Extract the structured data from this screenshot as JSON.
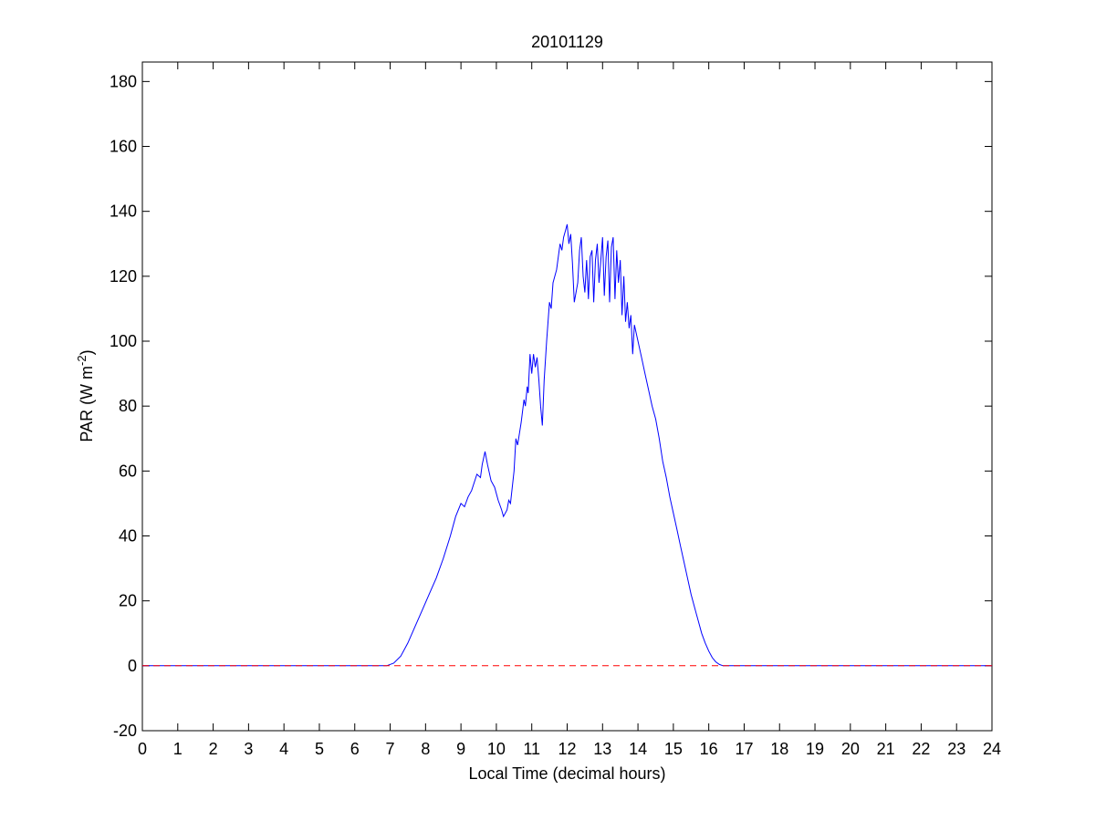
{
  "chart_data": {
    "type": "line",
    "title": "20101129",
    "xlabel": "Local Time (decimal hours)",
    "ylabel": "PAR (W m",
    "ylabel_superscript": "-2",
    "ylabel_suffix": ")",
    "xlim": [
      0,
      24
    ],
    "ylim": [
      -20,
      186
    ],
    "xticks": [
      0,
      1,
      2,
      3,
      4,
      5,
      6,
      7,
      8,
      9,
      10,
      11,
      12,
      13,
      14,
      15,
      16,
      17,
      18,
      19,
      20,
      21,
      22,
      23,
      24
    ],
    "yticks": [
      -20,
      0,
      20,
      40,
      60,
      80,
      100,
      120,
      140,
      160,
      180
    ],
    "grid": false,
    "series": [
      {
        "color": "#0000ff",
        "style": "solid",
        "points": [
          [
            0,
            0
          ],
          [
            6.9,
            0
          ],
          [
            7.1,
            0.8
          ],
          [
            7.3,
            3
          ],
          [
            7.5,
            7
          ],
          [
            7.7,
            12
          ],
          [
            7.9,
            17
          ],
          [
            8.1,
            22
          ],
          [
            8.3,
            27
          ],
          [
            8.5,
            33
          ],
          [
            8.7,
            40
          ],
          [
            8.85,
            46
          ],
          [
            9.0,
            50
          ],
          [
            9.1,
            49
          ],
          [
            9.2,
            52
          ],
          [
            9.3,
            54
          ],
          [
            9.45,
            59
          ],
          [
            9.55,
            58
          ],
          [
            9.6,
            62
          ],
          [
            9.68,
            66
          ],
          [
            9.75,
            62
          ],
          [
            9.85,
            57
          ],
          [
            9.95,
            55
          ],
          [
            10.05,
            51
          ],
          [
            10.15,
            48
          ],
          [
            10.2,
            46
          ],
          [
            10.3,
            48
          ],
          [
            10.35,
            51
          ],
          [
            10.4,
            50
          ],
          [
            10.5,
            60
          ],
          [
            10.55,
            70
          ],
          [
            10.6,
            68
          ],
          [
            10.7,
            75
          ],
          [
            10.78,
            82
          ],
          [
            10.82,
            80
          ],
          [
            10.87,
            86
          ],
          [
            10.9,
            84
          ],
          [
            10.95,
            96
          ],
          [
            11.0,
            90
          ],
          [
            11.05,
            96
          ],
          [
            11.1,
            92
          ],
          [
            11.15,
            95
          ],
          [
            11.2,
            88
          ],
          [
            11.25,
            80
          ],
          [
            11.3,
            74
          ],
          [
            11.35,
            88
          ],
          [
            11.42,
            100
          ],
          [
            11.5,
            112
          ],
          [
            11.55,
            110
          ],
          [
            11.6,
            118
          ],
          [
            11.7,
            122
          ],
          [
            11.8,
            130
          ],
          [
            11.85,
            128
          ],
          [
            11.9,
            132
          ],
          [
            11.95,
            134
          ],
          [
            12.0,
            136
          ],
          [
            12.05,
            130
          ],
          [
            12.1,
            133
          ],
          [
            12.15,
            124
          ],
          [
            12.2,
            112
          ],
          [
            12.3,
            118
          ],
          [
            12.35,
            128
          ],
          [
            12.4,
            132
          ],
          [
            12.45,
            120
          ],
          [
            12.5,
            115
          ],
          [
            12.55,
            125
          ],
          [
            12.6,
            113
          ],
          [
            12.65,
            126
          ],
          [
            12.7,
            128
          ],
          [
            12.75,
            112
          ],
          [
            12.8,
            125
          ],
          [
            12.85,
            130
          ],
          [
            12.9,
            118
          ],
          [
            12.95,
            125
          ],
          [
            13.0,
            132
          ],
          [
            13.05,
            114
          ],
          [
            13.1,
            126
          ],
          [
            13.15,
            131
          ],
          [
            13.2,
            112
          ],
          [
            13.25,
            129
          ],
          [
            13.3,
            132
          ],
          [
            13.35,
            113
          ],
          [
            13.4,
            128
          ],
          [
            13.45,
            118
          ],
          [
            13.5,
            125
          ],
          [
            13.55,
            108
          ],
          [
            13.6,
            120
          ],
          [
            13.65,
            106
          ],
          [
            13.7,
            112
          ],
          [
            13.75,
            104
          ],
          [
            13.8,
            108
          ],
          [
            13.85,
            96
          ],
          [
            13.9,
            105
          ],
          [
            14.0,
            100
          ],
          [
            14.1,
            95
          ],
          [
            14.2,
            90
          ],
          [
            14.3,
            85
          ],
          [
            14.4,
            80
          ],
          [
            14.5,
            76
          ],
          [
            14.6,
            70
          ],
          [
            14.7,
            63
          ],
          [
            14.8,
            58
          ],
          [
            14.9,
            52
          ],
          [
            15.0,
            47
          ],
          [
            15.1,
            42
          ],
          [
            15.2,
            37
          ],
          [
            15.3,
            32
          ],
          [
            15.4,
            27
          ],
          [
            15.5,
            22
          ],
          [
            15.6,
            18
          ],
          [
            15.7,
            14
          ],
          [
            15.8,
            10
          ],
          [
            15.9,
            7
          ],
          [
            16.0,
            4.5
          ],
          [
            16.1,
            2.5
          ],
          [
            16.2,
            1.2
          ],
          [
            16.3,
            0.4
          ],
          [
            16.4,
            0
          ],
          [
            24,
            0
          ]
        ]
      },
      {
        "color": "#ff0000",
        "style": "dashed",
        "points": [
          [
            0,
            0
          ],
          [
            24,
            0
          ]
        ]
      }
    ]
  }
}
